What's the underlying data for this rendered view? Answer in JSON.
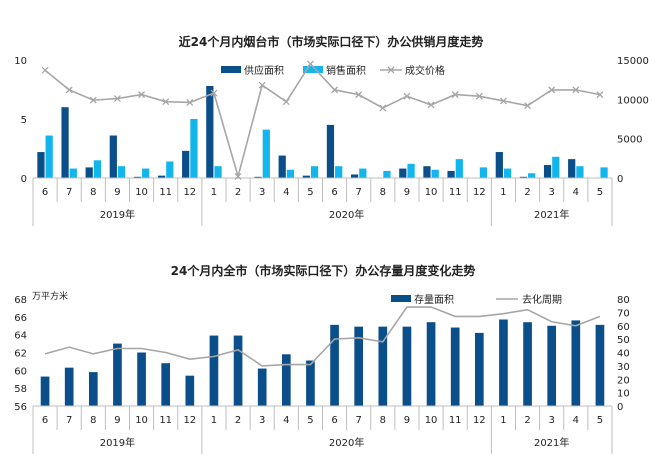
{
  "colors": {
    "supply": "#0b4f8a",
    "sales": "#12b6ec",
    "price": "#a6a6a6",
    "stock": "#0b4f8a",
    "cycle": "#a6a6a6"
  },
  "chart_data": [
    {
      "type": "bar",
      "title": "近24个月内烟台市（市场实际口径下）办公供销月度走势",
      "categories": [
        "6",
        "7",
        "8",
        "9",
        "10",
        "11",
        "12",
        "1",
        "2",
        "3",
        "4",
        "5",
        "6",
        "7",
        "8",
        "9",
        "10",
        "11",
        "12",
        "1",
        "2",
        "3",
        "4",
        "5"
      ],
      "year_labels": [
        "2019年",
        "2020年",
        "2021年"
      ],
      "year_spans": [
        [
          0,
          6
        ],
        [
          7,
          18
        ],
        [
          19,
          23
        ]
      ],
      "ylim": [
        0,
        10
      ],
      "y2lim": [
        0,
        15000
      ],
      "yticks": [
        0,
        5,
        10
      ],
      "y2ticks": [
        0,
        5000,
        10000,
        15000
      ],
      "series": [
        {
          "name": "供应面积",
          "kind": "bar",
          "axis": "left",
          "values": [
            2.2,
            6.0,
            0.9,
            3.6,
            0.1,
            0.2,
            2.3,
            7.8,
            0.0,
            0.1,
            1.9,
            0.2,
            4.5,
            0.3,
            0.0,
            0.8,
            1.0,
            0.6,
            0.0,
            2.2,
            0.1,
            1.1,
            1.6,
            0.0
          ]
        },
        {
          "name": "销售面积",
          "kind": "bar",
          "axis": "left",
          "values": [
            3.6,
            0.8,
            1.5,
            1.0,
            0.8,
            1.4,
            5.0,
            1.0,
            0.0,
            4.1,
            0.7,
            1.0,
            1.0,
            0.8,
            0.6,
            1.2,
            0.7,
            1.6,
            0.9,
            0.8,
            0.4,
            1.8,
            1.0,
            0.9
          ]
        },
        {
          "name": "成交价格",
          "kind": "line",
          "axis": "right",
          "values": [
            13700,
            11200,
            9900,
            10100,
            10600,
            9700,
            9600,
            10800,
            200,
            11800,
            9700,
            14500,
            11200,
            10600,
            8900,
            10400,
            9300,
            10600,
            10400,
            9800,
            9200,
            11200,
            11200,
            10600
          ]
        }
      ]
    },
    {
      "type": "bar",
      "title": "24个月内全市（市场实际口径下）办公存量月度变化走势",
      "unit_label": "万平方米",
      "categories": [
        "6",
        "7",
        "8",
        "9",
        "10",
        "11",
        "12",
        "1",
        "2",
        "3",
        "4",
        "5",
        "6",
        "7",
        "8",
        "9",
        "10",
        "11",
        "12",
        "1",
        "2",
        "3",
        "4",
        "5"
      ],
      "year_labels": [
        "2019年",
        "2020年",
        "2021年"
      ],
      "year_spans": [
        [
          0,
          6
        ],
        [
          7,
          18
        ],
        [
          19,
          23
        ]
      ],
      "ylim": [
        56,
        68
      ],
      "y2lim": [
        0,
        80
      ],
      "yticks": [
        56,
        58,
        60,
        62,
        64,
        66,
        68
      ],
      "y2ticks": [
        0,
        10,
        20,
        30,
        40,
        50,
        60,
        70,
        80
      ],
      "series": [
        {
          "name": "存量面积",
          "kind": "bar",
          "axis": "left",
          "values": [
            59.3,
            60.3,
            59.8,
            63.0,
            62.0,
            60.8,
            59.4,
            63.9,
            63.9,
            60.2,
            61.8,
            61.1,
            65.1,
            64.9,
            64.9,
            64.9,
            65.4,
            64.8,
            64.2,
            65.7,
            65.4,
            65.0,
            65.6,
            65.1
          ]
        },
        {
          "name": "去化周期",
          "kind": "line",
          "axis": "right",
          "values": [
            39,
            44,
            39,
            43,
            43,
            40,
            35,
            37,
            42,
            30,
            31,
            31,
            50,
            51,
            48,
            74,
            74,
            67,
            67,
            69,
            72,
            63,
            60,
            67
          ]
        }
      ]
    }
  ]
}
